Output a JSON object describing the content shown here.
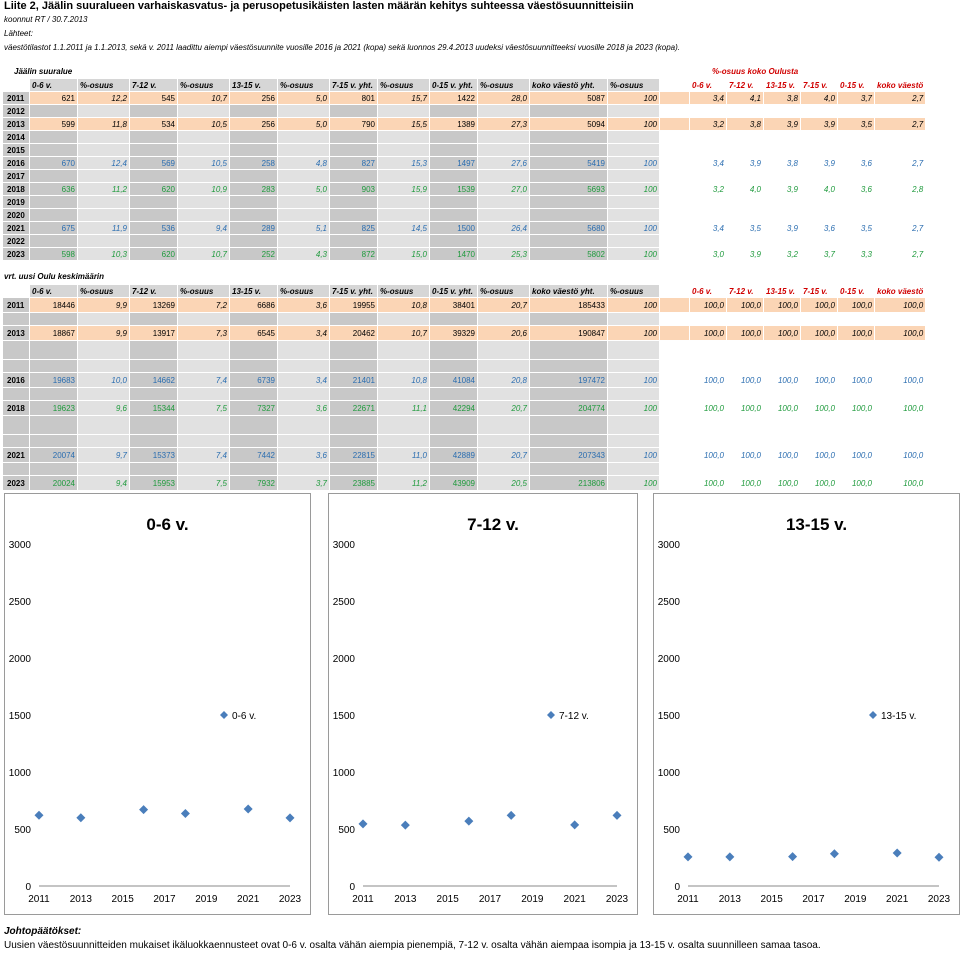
{
  "header": {
    "title": "Liite 2, Jäälin suuralueen varhaiskasvatus- ja perusopetusikäisten lasten määrän kehitys suhteessa väestösuunnitteisiin",
    "author": "koonnut RT / 30.7.2013",
    "sources_label": "Lähteet:",
    "sources_text": "väestötilastot 1.1.2011 ja 1.1.2013, sekä v. 2011 laadittu aiempi väestösuunnite vuosille 2016 ja 2021 (kopa) sekä luonnos 29.4.2013 uudeksi väestösuunnitteeksi vuosille 2018 ja 2023 (kopa)."
  },
  "table1": {
    "title": "Jäälin suuralue",
    "right_title": "%-osuus koko Oulusta",
    "headers": [
      "0-6 v.",
      "%-osuus",
      "7-12 v.",
      "%-osuus",
      "13-15 v.",
      "%-osuus",
      "7-15 v. yht.",
      "%-osuus",
      "0-15 v. yht.",
      "%-osuus",
      "koko väestö yht.",
      "%-osuus"
    ],
    "right_headers": [
      "0-6 v.",
      "7-12 v.",
      "13-15 v.",
      "7-15 v.",
      "0-15 v.",
      "koko väestö"
    ],
    "rows": [
      {
        "year": "2011",
        "vals": [
          "621",
          "12,2",
          "545",
          "10,7",
          "256",
          "5,0",
          "801",
          "15,7",
          "1422",
          "28,0",
          "5087",
          "100"
        ],
        "right": [
          "3,4",
          "4,1",
          "3,8",
          "4,0",
          "3,7",
          "2,7"
        ],
        "style": "black",
        "peach": true
      },
      {
        "year": "2012",
        "vals": [],
        "right": [],
        "style": "black",
        "peach": false
      },
      {
        "year": "2013",
        "vals": [
          "599",
          "11,8",
          "534",
          "10,5",
          "256",
          "5,0",
          "790",
          "15,5",
          "1389",
          "27,3",
          "5094",
          "100"
        ],
        "right": [
          "3,2",
          "3,8",
          "3,9",
          "3,9",
          "3,5",
          "2,7"
        ],
        "style": "black",
        "peach": true
      },
      {
        "year": "2014",
        "vals": [],
        "right": [],
        "style": "black",
        "peach": false
      },
      {
        "year": "2015",
        "vals": [],
        "right": [],
        "style": "black",
        "peach": false
      },
      {
        "year": "2016",
        "vals": [
          "670",
          "12,4",
          "569",
          "10,5",
          "258",
          "4,8",
          "827",
          "15,3",
          "1497",
          "27,6",
          "5419",
          "100"
        ],
        "right": [
          "3,4",
          "3,9",
          "3,8",
          "3,9",
          "3,6",
          "2,7"
        ],
        "style": "blue",
        "peach": false
      },
      {
        "year": "2017",
        "vals": [],
        "right": [],
        "style": "black",
        "peach": false
      },
      {
        "year": "2018",
        "vals": [
          "636",
          "11,2",
          "620",
          "10,9",
          "283",
          "5,0",
          "903",
          "15,9",
          "1539",
          "27,0",
          "5693",
          "100"
        ],
        "right": [
          "3,2",
          "4,0",
          "3,9",
          "4,0",
          "3,6",
          "2,8"
        ],
        "style": "green",
        "peach": false
      },
      {
        "year": "2019",
        "vals": [],
        "right": [],
        "style": "black",
        "peach": false
      },
      {
        "year": "2020",
        "vals": [],
        "right": [],
        "style": "black",
        "peach": false
      },
      {
        "year": "2021",
        "vals": [
          "675",
          "11,9",
          "536",
          "9,4",
          "289",
          "5,1",
          "825",
          "14,5",
          "1500",
          "26,4",
          "5680",
          "100"
        ],
        "right": [
          "3,4",
          "3,5",
          "3,9",
          "3,6",
          "3,5",
          "2,7"
        ],
        "style": "blue",
        "peach": false
      },
      {
        "year": "2022",
        "vals": [],
        "right": [],
        "style": "black",
        "peach": false
      },
      {
        "year": "2023",
        "vals": [
          "598",
          "10,3",
          "620",
          "10,7",
          "252",
          "4,3",
          "872",
          "15,0",
          "1470",
          "25,3",
          "5802",
          "100"
        ],
        "right": [
          "3,0",
          "3,9",
          "3,2",
          "3,7",
          "3,3",
          "2,7"
        ],
        "style": "green",
        "peach": false
      }
    ]
  },
  "table2": {
    "title": "vrt. uusi Oulu keskimäärin",
    "headers": [
      "0-6 v.",
      "%-osuus",
      "7-12 v.",
      "%-osuus",
      "13-15 v.",
      "%-osuus",
      "7-15 v. yht.",
      "%-osuus",
      "0-15 v. yht.",
      "%-osuus",
      "koko väestö yht.",
      "%-osuus"
    ],
    "right_headers": [
      "0-6 v.",
      "7-12 v.",
      "13-15 v.",
      "7-15 v.",
      "0-15 v.",
      "koko väestö"
    ],
    "rows": [
      {
        "year": "2011",
        "vals": [
          "18446",
          "9,9",
          "13269",
          "7,2",
          "6686",
          "3,6",
          "19955",
          "10,8",
          "38401",
          "20,7",
          "185433",
          "100"
        ],
        "right": [
          "100,0",
          "100,0",
          "100,0",
          "100,0",
          "100,0",
          "100,0"
        ],
        "style": "black",
        "peach": true
      },
      {
        "year": "",
        "vals": [],
        "right": [],
        "style": "black",
        "peach": false
      },
      {
        "year": "2013",
        "vals": [
          "18867",
          "9,9",
          "13917",
          "7,3",
          "6545",
          "3,4",
          "20462",
          "10,7",
          "39329",
          "20,6",
          "190847",
          "100"
        ],
        "right": [
          "100,0",
          "100,0",
          "100,0",
          "100,0",
          "100,0",
          "100,0"
        ],
        "style": "black",
        "peach": true
      },
      {
        "year": "",
        "vals": [],
        "right": [],
        "style": "black",
        "peach": false
      },
      {
        "year": "",
        "vals": [],
        "right": [],
        "style": "black",
        "peach": false
      },
      {
        "year": "2016",
        "vals": [
          "19683",
          "10,0",
          "14662",
          "7,4",
          "6739",
          "3,4",
          "21401",
          "10,8",
          "41084",
          "20,8",
          "197472",
          "100"
        ],
        "right": [
          "100,0",
          "100,0",
          "100,0",
          "100,0",
          "100,0",
          "100,0"
        ],
        "style": "blue",
        "peach": false
      },
      {
        "year": "",
        "vals": [],
        "right": [],
        "style": "black",
        "peach": false
      },
      {
        "year": "2018",
        "vals": [
          "19623",
          "9,6",
          "15344",
          "7,5",
          "7327",
          "3,6",
          "22671",
          "11,1",
          "42294",
          "20,7",
          "204774",
          "100"
        ],
        "right": [
          "100,0",
          "100,0",
          "100,0",
          "100,0",
          "100,0",
          "100,0"
        ],
        "style": "green",
        "peach": false
      },
      {
        "year": "",
        "vals": [],
        "right": [],
        "style": "black",
        "peach": false
      },
      {
        "year": "",
        "vals": [],
        "right": [],
        "style": "black",
        "peach": false
      },
      {
        "year": "2021",
        "vals": [
          "20074",
          "9,7",
          "15373",
          "7,4",
          "7442",
          "3,6",
          "22815",
          "11,0",
          "42889",
          "20,7",
          "207343",
          "100"
        ],
        "right": [
          "100,0",
          "100,0",
          "100,0",
          "100,0",
          "100,0",
          "100,0"
        ],
        "style": "blue",
        "peach": false
      },
      {
        "year": "",
        "vals": [],
        "right": [],
        "style": "black",
        "peach": false
      },
      {
        "year": "2023",
        "vals": [
          "20024",
          "9,4",
          "15953",
          "7,5",
          "7932",
          "3,7",
          "23885",
          "11,2",
          "43909",
          "20,5",
          "213806",
          "100"
        ],
        "right": [
          "100,0",
          "100,0",
          "100,0",
          "100,0",
          "100,0",
          "100,0"
        ],
        "style": "green",
        "peach": false
      }
    ]
  },
  "chart_data": [
    {
      "type": "scatter",
      "title": "0-6 v.",
      "series": [
        {
          "name": "0-6 v.",
          "x": [
            2011,
            2013,
            2016,
            2018,
            2021,
            2023
          ],
          "y": [
            621,
            599,
            670,
            636,
            675,
            598
          ]
        }
      ],
      "xticks": [
        "2011",
        "2013",
        "2015",
        "2017",
        "2019",
        "2021",
        "2023"
      ],
      "yticks": [
        "0",
        "500",
        "1000",
        "1500",
        "2000",
        "2500",
        "3000"
      ],
      "xlim": [
        2011,
        2023
      ],
      "ylim": [
        0,
        3000
      ],
      "legend": "right",
      "color": "#4a7ebb"
    },
    {
      "type": "scatter",
      "title": "7-12 v.",
      "series": [
        {
          "name": "7-12 v.",
          "x": [
            2011,
            2013,
            2016,
            2018,
            2021,
            2023
          ],
          "y": [
            545,
            534,
            569,
            620,
            536,
            620
          ]
        }
      ],
      "xticks": [
        "2011",
        "2013",
        "2015",
        "2017",
        "2019",
        "2021",
        "2023"
      ],
      "yticks": [
        "0",
        "500",
        "1000",
        "1500",
        "2000",
        "2500",
        "3000"
      ],
      "xlim": [
        2011,
        2023
      ],
      "ylim": [
        0,
        3000
      ],
      "legend": "right",
      "color": "#4a7ebb"
    },
    {
      "type": "scatter",
      "title": "13-15 v.",
      "series": [
        {
          "name": "13-15 v.",
          "x": [
            2011,
            2013,
            2016,
            2018,
            2021,
            2023
          ],
          "y": [
            256,
            256,
            258,
            283,
            289,
            252
          ]
        }
      ],
      "xticks": [
        "2011",
        "2013",
        "2015",
        "2017",
        "2019",
        "2021",
        "2023"
      ],
      "yticks": [
        "0",
        "500",
        "1000",
        "1500",
        "2000",
        "2500",
        "3000"
      ],
      "xlim": [
        2011,
        2023
      ],
      "ylim": [
        0,
        3000
      ],
      "legend": "right",
      "color": "#4a7ebb"
    }
  ],
  "conclusions": {
    "title": "Johtopäätökset:",
    "text": "Uusien väestösuunnitteiden mukaiset ikäluokkaennusteet ovat 0-6 v. osalta vähän aiempia pienempiä, 7-12 v. osalta vähän aiempaa isompia ja 13-15 v. osalta suunnilleen samaa tasoa."
  }
}
